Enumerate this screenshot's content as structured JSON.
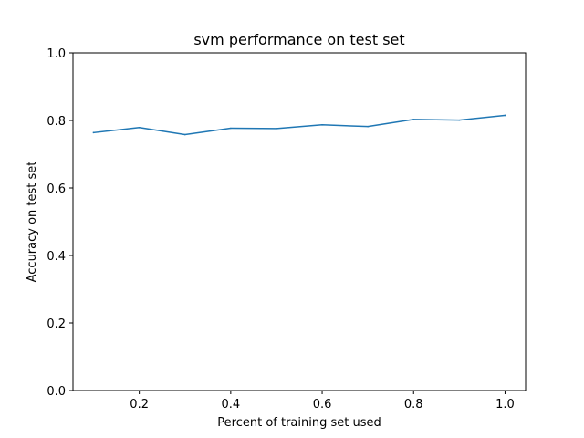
{
  "chart_data": {
    "type": "line",
    "title": "svm performance on test set",
    "xlabel": "Percent of training set used",
    "ylabel": "Accuracy on test set",
    "xlim": [
      0.055,
      1.045
    ],
    "ylim": [
      0.0,
      1.0
    ],
    "x_ticks": [
      "0.2",
      "0.4",
      "0.6",
      "0.8",
      "1.0"
    ],
    "y_ticks": [
      "0.0",
      "0.2",
      "0.4",
      "0.6",
      "0.8",
      "1.0"
    ],
    "grid": false,
    "line_color": "#1f77b4",
    "series": [
      {
        "x": [
          0.1,
          0.2,
          0.3,
          0.4,
          0.5,
          0.6,
          0.7,
          0.8,
          0.9,
          1.0
        ],
        "values": [
          0.764,
          0.779,
          0.758,
          0.777,
          0.776,
          0.787,
          0.782,
          0.803,
          0.801,
          0.815
        ]
      }
    ]
  }
}
